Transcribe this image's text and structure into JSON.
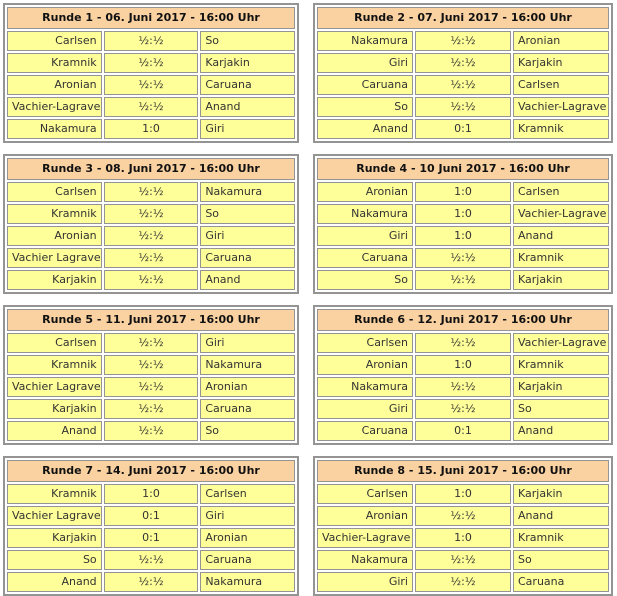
{
  "rounds": [
    {
      "title": "Runde 1 - 06. Juni 2017 - 16:00 Uhr",
      "games": [
        {
          "white": "Carlsen",
          "score": "½:½",
          "black": "So"
        },
        {
          "white": "Kramnik",
          "score": "½:½",
          "black": "Karjakin"
        },
        {
          "white": "Aronian",
          "score": "½:½",
          "black": "Caruana"
        },
        {
          "white": "Vachier-Lagrave",
          "score": "½:½",
          "black": "Anand"
        },
        {
          "white": "Nakamura",
          "score": "1:0",
          "black": "Giri"
        }
      ]
    },
    {
      "title": "Runde 2 - 07. Juni 2017 - 16:00 Uhr",
      "games": [
        {
          "white": "Nakamura",
          "score": "½:½",
          "black": "Aronian"
        },
        {
          "white": "Giri",
          "score": "½:½",
          "black": "Karjakin"
        },
        {
          "white": "Caruana",
          "score": "½:½",
          "black": "Carlsen"
        },
        {
          "white": "So",
          "score": "½:½",
          "black": "Vachier-Lagrave"
        },
        {
          "white": "Anand",
          "score": "0:1",
          "black": "Kramnik"
        }
      ]
    },
    {
      "title": "Runde 3 - 08. Juni 2017 - 16:00 Uhr",
      "games": [
        {
          "white": "Carlsen",
          "score": "½:½",
          "black": "Nakamura"
        },
        {
          "white": "Kramnik",
          "score": "½:½",
          "black": "So"
        },
        {
          "white": "Aronian",
          "score": "½:½",
          "black": "Giri"
        },
        {
          "white": "Vachier Lagrave",
          "score": "½:½",
          "black": "Caruana"
        },
        {
          "white": "Karjakin",
          "score": "½:½",
          "black": "Anand"
        }
      ]
    },
    {
      "title": "Runde 4 - 10 Juni 2017 - 16:00 Uhr",
      "games": [
        {
          "white": "Aronian",
          "score": "1:0",
          "black": "Carlsen"
        },
        {
          "white": "Nakamura",
          "score": "1:0",
          "black": "Vachier-Lagrave"
        },
        {
          "white": "Giri",
          "score": "1:0",
          "black": "Anand"
        },
        {
          "white": "Caruana",
          "score": "½:½",
          "black": "Kramnik"
        },
        {
          "white": "So",
          "score": "½:½",
          "black": "Karjakin"
        }
      ]
    },
    {
      "title": "Runde 5 - 11. Juni 2017 - 16:00 Uhr",
      "games": [
        {
          "white": "Carlsen",
          "score": "½:½",
          "black": "Giri"
        },
        {
          "white": "Kramnik",
          "score": "½:½",
          "black": "Nakamura"
        },
        {
          "white": "Vachier Lagrave",
          "score": "½:½",
          "black": "Aronian"
        },
        {
          "white": "Karjakin",
          "score": "½:½",
          "black": "Caruana"
        },
        {
          "white": "Anand",
          "score": "½:½",
          "black": "So"
        }
      ]
    },
    {
      "title": "Runde 6 - 12. Juni 2017 - 16:00 Uhr",
      "games": [
        {
          "white": "Carlsen",
          "score": "½:½",
          "black": "Vachier-Lagrave"
        },
        {
          "white": "Aronian",
          "score": "1:0",
          "black": "Kramnik"
        },
        {
          "white": "Nakamura",
          "score": "½:½",
          "black": "Karjakin"
        },
        {
          "white": "Giri",
          "score": "½:½",
          "black": "So"
        },
        {
          "white": "Caruana",
          "score": "0:1",
          "black": "Anand"
        }
      ]
    },
    {
      "title": "Runde 7 - 14. Juni 2017 - 16:00 Uhr",
      "games": [
        {
          "white": "Kramnik",
          "score": "1:0",
          "black": "Carlsen"
        },
        {
          "white": "Vachier Lagrave",
          "score": "0:1",
          "black": "Giri"
        },
        {
          "white": "Karjakin",
          "score": "0:1",
          "black": "Aronian"
        },
        {
          "white": "So",
          "score": "½:½",
          "black": "Caruana"
        },
        {
          "white": "Anand",
          "score": "½:½",
          "black": "Nakamura"
        }
      ]
    },
    {
      "title": "Runde 8 - 15. Juni 2017 - 16:00 Uhr",
      "games": [
        {
          "white": "Carlsen",
          "score": "1:0",
          "black": "Karjakin"
        },
        {
          "white": "Aronian",
          "score": "½:½",
          "black": "Anand"
        },
        {
          "white": "Vachier-Lagrave",
          "score": "1:0",
          "black": "Kramnik"
        },
        {
          "white": "Nakamura",
          "score": "½:½",
          "black": "So"
        },
        {
          "white": "Giri",
          "score": "½:½",
          "black": "Caruana"
        }
      ]
    }
  ],
  "colors": {
    "header_bg": "#fad2a2",
    "cell_bg": "#ffff99",
    "border": "#949494",
    "text": "#333333"
  }
}
